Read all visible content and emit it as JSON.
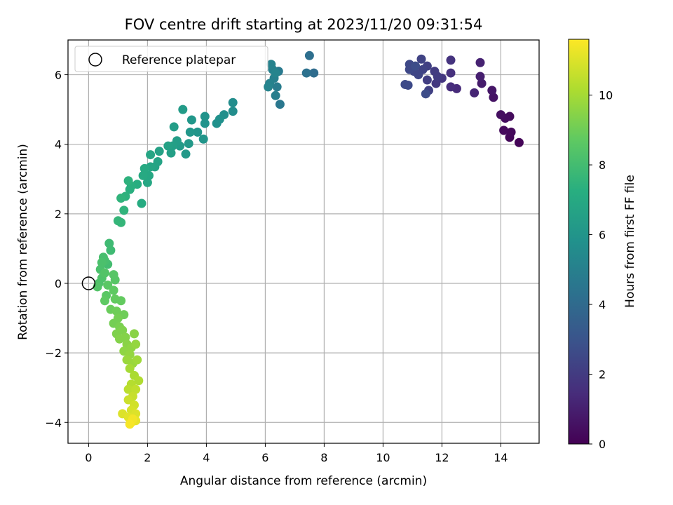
{
  "chart_data": {
    "type": "scatter",
    "title": "FOV centre drift starting at 2023/11/20 09:31:54",
    "xlabel": "Angular distance from reference (arcmin)",
    "ylabel": "Rotation from reference (arcmin)",
    "xlim": [
      -0.7,
      15.3
    ],
    "ylim": [
      -4.6,
      7.0
    ],
    "xticks": [
      0,
      2,
      4,
      6,
      8,
      10,
      12,
      14
    ],
    "yticks": [
      -4,
      -2,
      0,
      2,
      4,
      6
    ],
    "grid": true,
    "legend": {
      "placement": "upper-left",
      "entries": [
        "Reference platepar"
      ]
    },
    "reference_point": {
      "x": 0,
      "y": 0
    },
    "colorbar": {
      "label": "Hours from first FF file",
      "range": [
        0,
        11.6
      ],
      "ticks": [
        0,
        2,
        4,
        6,
        8,
        10
      ],
      "colormap": "viridis"
    },
    "series": [
      {
        "points": [
          {
            "x": 14.62,
            "y": 4.05,
            "h": 0.1
          },
          {
            "x": 14.3,
            "y": 4.2,
            "h": 0.2
          },
          {
            "x": 14.35,
            "y": 4.35,
            "h": 0.25
          },
          {
            "x": 14.1,
            "y": 4.4,
            "h": 0.3
          },
          {
            "x": 14.3,
            "y": 4.8,
            "h": 0.35
          },
          {
            "x": 14.15,
            "y": 4.75,
            "h": 0.4
          },
          {
            "x": 14.0,
            "y": 4.85,
            "h": 0.45
          },
          {
            "x": 13.75,
            "y": 5.35,
            "h": 0.6
          },
          {
            "x": 13.7,
            "y": 5.55,
            "h": 0.7
          },
          {
            "x": 13.35,
            "y": 5.75,
            "h": 0.9
          },
          {
            "x": 13.3,
            "y": 5.95,
            "h": 1.0
          },
          {
            "x": 13.3,
            "y": 6.35,
            "h": 1.1
          },
          {
            "x": 13.1,
            "y": 5.48,
            "h": 1.2
          },
          {
            "x": 12.5,
            "y": 5.6,
            "h": 1.4
          },
          {
            "x": 12.3,
            "y": 5.65,
            "h": 1.5
          },
          {
            "x": 12.3,
            "y": 6.05,
            "h": 1.6
          },
          {
            "x": 12.3,
            "y": 6.42,
            "h": 1.7
          },
          {
            "x": 12.0,
            "y": 5.9,
            "h": 1.8
          },
          {
            "x": 11.8,
            "y": 5.75,
            "h": 1.9
          },
          {
            "x": 11.85,
            "y": 5.95,
            "h": 2.0
          },
          {
            "x": 11.75,
            "y": 6.1,
            "h": 2.0
          },
          {
            "x": 11.5,
            "y": 5.85,
            "h": 2.1
          },
          {
            "x": 11.55,
            "y": 5.55,
            "h": 2.2
          },
          {
            "x": 11.5,
            "y": 6.25,
            "h": 2.2
          },
          {
            "x": 11.35,
            "y": 6.15,
            "h": 2.3
          },
          {
            "x": 11.3,
            "y": 6.45,
            "h": 2.3
          },
          {
            "x": 11.2,
            "y": 6.0,
            "h": 2.4
          },
          {
            "x": 11.05,
            "y": 6.1,
            "h": 2.4
          },
          {
            "x": 10.9,
            "y": 6.15,
            "h": 2.5
          },
          {
            "x": 10.9,
            "y": 6.3,
            "h": 2.5
          },
          {
            "x": 10.85,
            "y": 5.7,
            "h": 2.6
          },
          {
            "x": 10.75,
            "y": 5.72,
            "h": 2.6
          },
          {
            "x": 11.1,
            "y": 6.25,
            "h": 2.7
          },
          {
            "x": 11.45,
            "y": 5.45,
            "h": 2.7
          },
          {
            "x": 7.65,
            "y": 6.05,
            "h": 4.1
          },
          {
            "x": 7.5,
            "y": 6.55,
            "h": 4.2
          },
          {
            "x": 7.4,
            "y": 6.05,
            "h": 4.3
          },
          {
            "x": 6.5,
            "y": 5.15,
            "h": 4.6
          },
          {
            "x": 6.45,
            "y": 6.1,
            "h": 4.7
          },
          {
            "x": 6.4,
            "y": 5.65,
            "h": 4.8
          },
          {
            "x": 6.35,
            "y": 5.4,
            "h": 4.9
          },
          {
            "x": 6.3,
            "y": 5.9,
            "h": 5.0
          },
          {
            "x": 6.25,
            "y": 6.15,
            "h": 5.0
          },
          {
            "x": 6.2,
            "y": 6.3,
            "h": 5.1
          },
          {
            "x": 6.15,
            "y": 5.75,
            "h": 5.1
          },
          {
            "x": 6.1,
            "y": 5.65,
            "h": 5.2
          },
          {
            "x": 6.35,
            "y": 6.05,
            "h": 5.2
          },
          {
            "x": 4.9,
            "y": 5.2,
            "h": 5.6
          },
          {
            "x": 4.9,
            "y": 4.95,
            "h": 5.6
          },
          {
            "x": 4.6,
            "y": 4.85,
            "h": 5.7
          },
          {
            "x": 4.45,
            "y": 4.72,
            "h": 5.8
          },
          {
            "x": 4.35,
            "y": 4.6,
            "h": 5.8
          },
          {
            "x": 3.95,
            "y": 4.8,
            "h": 5.9
          },
          {
            "x": 3.95,
            "y": 4.6,
            "h": 5.9
          },
          {
            "x": 3.9,
            "y": 4.15,
            "h": 6.0
          },
          {
            "x": 3.7,
            "y": 4.35,
            "h": 6.0
          },
          {
            "x": 3.5,
            "y": 4.7,
            "h": 6.1
          },
          {
            "x": 3.45,
            "y": 4.35,
            "h": 6.1
          },
          {
            "x": 3.4,
            "y": 4.02,
            "h": 6.2
          },
          {
            "x": 3.3,
            "y": 3.72,
            "h": 6.2
          },
          {
            "x": 3.2,
            "y": 5.0,
            "h": 6.3
          },
          {
            "x": 3.1,
            "y": 3.95,
            "h": 6.3
          },
          {
            "x": 3.0,
            "y": 4.1,
            "h": 6.4
          },
          {
            "x": 2.9,
            "y": 4.5,
            "h": 6.4
          },
          {
            "x": 2.85,
            "y": 3.95,
            "h": 6.5
          },
          {
            "x": 2.8,
            "y": 3.75,
            "h": 6.5
          },
          {
            "x": 2.7,
            "y": 3.95,
            "h": 6.6
          },
          {
            "x": 2.4,
            "y": 3.8,
            "h": 6.6
          },
          {
            "x": 2.35,
            "y": 3.5,
            "h": 6.7
          },
          {
            "x": 2.25,
            "y": 3.35,
            "h": 6.7
          },
          {
            "x": 2.1,
            "y": 3.7,
            "h": 6.8
          },
          {
            "x": 2.1,
            "y": 3.35,
            "h": 6.8
          },
          {
            "x": 2.05,
            "y": 3.1,
            "h": 6.9
          },
          {
            "x": 2.0,
            "y": 2.9,
            "h": 6.9
          },
          {
            "x": 1.9,
            "y": 3.3,
            "h": 7.0
          },
          {
            "x": 1.85,
            "y": 3.1,
            "h": 7.0
          },
          {
            "x": 1.8,
            "y": 2.3,
            "h": 7.1
          },
          {
            "x": 1.65,
            "y": 2.85,
            "h": 7.2
          },
          {
            "x": 1.45,
            "y": 2.8,
            "h": 7.3
          },
          {
            "x": 1.4,
            "y": 2.7,
            "h": 7.3
          },
          {
            "x": 1.35,
            "y": 2.95,
            "h": 7.4
          },
          {
            "x": 1.25,
            "y": 2.5,
            "h": 7.4
          },
          {
            "x": 1.2,
            "y": 2.1,
            "h": 7.5
          },
          {
            "x": 1.1,
            "y": 2.45,
            "h": 7.5
          },
          {
            "x": 1.1,
            "y": 1.75,
            "h": 7.6
          },
          {
            "x": 1.0,
            "y": 1.8,
            "h": 7.6
          },
          {
            "x": 0.75,
            "y": 0.95,
            "h": 7.9
          },
          {
            "x": 0.7,
            "y": 1.15,
            "h": 7.9
          },
          {
            "x": 0.65,
            "y": 0.55,
            "h": 8.0
          },
          {
            "x": 0.55,
            "y": 0.65,
            "h": 8.1
          },
          {
            "x": 0.5,
            "y": 0.75,
            "h": 8.1
          },
          {
            "x": 0.45,
            "y": 0.6,
            "h": 8.2
          },
          {
            "x": 0.4,
            "y": 0.4,
            "h": 8.2
          },
          {
            "x": 0.45,
            "y": 0.15,
            "h": 8.3
          },
          {
            "x": 0.35,
            "y": 0.0,
            "h": 8.3
          },
          {
            "x": 0.3,
            "y": -0.1,
            "h": 8.4
          },
          {
            "x": 0.55,
            "y": 0.3,
            "h": 8.4
          },
          {
            "x": 0.85,
            "y": 0.25,
            "h": 8.5
          },
          {
            "x": 0.9,
            "y": 0.1,
            "h": 8.5
          },
          {
            "x": 0.65,
            "y": -0.05,
            "h": 8.6
          },
          {
            "x": 0.6,
            "y": -0.35,
            "h": 8.6
          },
          {
            "x": 0.55,
            "y": -0.5,
            "h": 8.7
          },
          {
            "x": 0.85,
            "y": -0.2,
            "h": 8.7
          },
          {
            "x": 0.9,
            "y": -0.45,
            "h": 8.8
          },
          {
            "x": 1.1,
            "y": -0.5,
            "h": 8.8
          },
          {
            "x": 0.75,
            "y": -0.75,
            "h": 8.9
          },
          {
            "x": 0.95,
            "y": -0.8,
            "h": 9.0
          },
          {
            "x": 1.2,
            "y": -0.9,
            "h": 9.0
          },
          {
            "x": 1.0,
            "y": -1.0,
            "h": 9.1
          },
          {
            "x": 0.85,
            "y": -1.15,
            "h": 9.1
          },
          {
            "x": 1.05,
            "y": -1.25,
            "h": 9.2
          },
          {
            "x": 0.95,
            "y": -1.45,
            "h": 9.3
          },
          {
            "x": 1.15,
            "y": -1.35,
            "h": 9.3
          },
          {
            "x": 1.25,
            "y": -1.55,
            "h": 9.4
          },
          {
            "x": 1.05,
            "y": -1.6,
            "h": 9.4
          },
          {
            "x": 1.3,
            "y": -1.75,
            "h": 9.5
          },
          {
            "x": 1.55,
            "y": -1.45,
            "h": 9.5
          },
          {
            "x": 1.45,
            "y": -1.85,
            "h": 9.6
          },
          {
            "x": 1.2,
            "y": -1.95,
            "h": 9.6
          },
          {
            "x": 1.4,
            "y": -2.05,
            "h": 9.7
          },
          {
            "x": 1.6,
            "y": -1.75,
            "h": 9.7
          },
          {
            "x": 1.3,
            "y": -2.2,
            "h": 9.8
          },
          {
            "x": 1.5,
            "y": -2.3,
            "h": 9.8
          },
          {
            "x": 1.65,
            "y": -2.2,
            "h": 9.9
          },
          {
            "x": 1.4,
            "y": -2.45,
            "h": 10.0
          },
          {
            "x": 1.55,
            "y": -2.65,
            "h": 10.1
          },
          {
            "x": 1.7,
            "y": -2.8,
            "h": 10.2
          },
          {
            "x": 1.45,
            "y": -2.9,
            "h": 10.3
          },
          {
            "x": 1.35,
            "y": -3.05,
            "h": 10.4
          },
          {
            "x": 1.6,
            "y": -3.05,
            "h": 10.5
          },
          {
            "x": 1.5,
            "y": -3.25,
            "h": 10.6
          },
          {
            "x": 1.35,
            "y": -3.35,
            "h": 10.7
          },
          {
            "x": 1.55,
            "y": -3.5,
            "h": 10.8
          },
          {
            "x": 1.45,
            "y": -3.65,
            "h": 10.9
          },
          {
            "x": 1.6,
            "y": -3.75,
            "h": 11.0
          },
          {
            "x": 1.15,
            "y": -3.75,
            "h": 11.0
          },
          {
            "x": 1.35,
            "y": -3.85,
            "h": 11.1
          },
          {
            "x": 1.6,
            "y": -3.95,
            "h": 11.2
          },
          {
            "x": 1.45,
            "y": -4.0,
            "h": 11.3
          },
          {
            "x": 1.5,
            "y": -3.9,
            "h": 11.4
          },
          {
            "x": 1.4,
            "y": -4.05,
            "h": 11.5
          }
        ]
      }
    ]
  }
}
